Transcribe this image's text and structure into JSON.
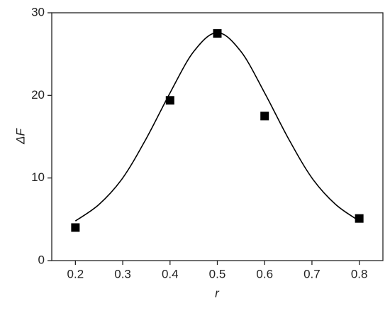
{
  "chart_data": {
    "type": "scatter",
    "x_label": "r",
    "y_label": "ΔF",
    "xlim": [
      0.15,
      0.85
    ],
    "ylim": [
      0,
      30
    ],
    "xticks": [
      0.2,
      0.3,
      0.4,
      0.5,
      0.6,
      0.7,
      0.8
    ],
    "yticks": [
      0,
      10,
      20,
      30
    ],
    "series": [
      {
        "marker": "square",
        "color": "#000000",
        "x": [
          0.2,
          0.4,
          0.5,
          0.6,
          0.8
        ],
        "values": [
          4.0,
          19.4,
          27.5,
          17.5,
          5.1
        ]
      },
      {
        "marker": "line",
        "color": "#000000",
        "x": [
          0.2,
          0.25,
          0.3,
          0.35,
          0.4,
          0.45,
          0.5,
          0.55,
          0.6,
          0.65,
          0.7,
          0.75,
          0.8
        ],
        "values": [
          4.8,
          6.8,
          10.0,
          14.8,
          20.3,
          25.3,
          27.6,
          25.3,
          20.3,
          14.8,
          10.0,
          6.8,
          4.8
        ]
      }
    ]
  }
}
